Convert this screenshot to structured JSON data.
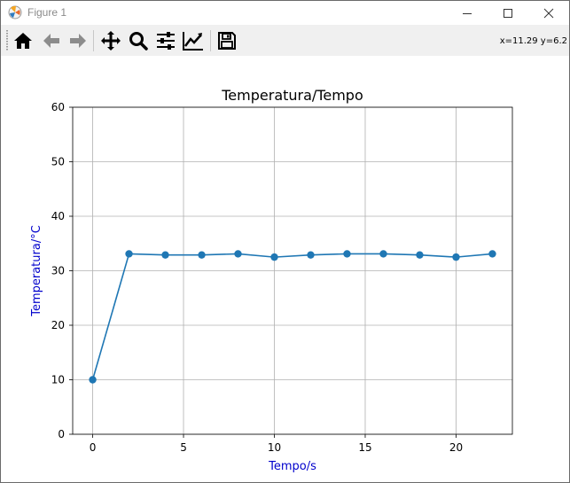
{
  "window": {
    "title": "Figure 1"
  },
  "toolbar": {
    "buttons": [
      {
        "name": "home-button",
        "icon": "home-icon"
      },
      {
        "name": "back-button",
        "icon": "arrow-left-icon"
      },
      {
        "name": "forward-button",
        "icon": "arrow-right-icon"
      },
      {
        "name": "pan-button",
        "icon": "move-icon"
      },
      {
        "name": "zoom-button",
        "icon": "magnifier-icon"
      },
      {
        "name": "configure-subplots-button",
        "icon": "sliders-icon"
      },
      {
        "name": "edit-axis-button",
        "icon": "line-chart-icon"
      },
      {
        "name": "save-button",
        "icon": "floppy-disk-icon"
      }
    ],
    "coordinates": "x=11.29 y=6.2"
  },
  "colors": {
    "series": "#1f77b4",
    "grid": "#b0b0b0",
    "axis_label": "#0000cc"
  },
  "chart_data": {
    "type": "line",
    "title": "Temperatura/Tempo",
    "xlabel": "Tempo/s",
    "ylabel": "Temperatura/°C",
    "x": [
      0,
      2,
      4,
      6,
      8,
      10,
      12,
      14,
      16,
      18,
      20,
      22
    ],
    "series": [
      {
        "values": [
          10,
          33.1,
          32.9,
          32.9,
          33.1,
          32.5,
          32.9,
          33.1,
          33.1,
          32.9,
          32.5,
          33.1
        ],
        "marker": "circle"
      }
    ],
    "xlim": [
      -1.1,
      23.1
    ],
    "ylim": [
      0,
      60
    ],
    "xticks": [
      "0",
      "5",
      "10",
      "15",
      "20"
    ],
    "yticks": [
      "0",
      "10",
      "20",
      "30",
      "40",
      "50",
      "60"
    ],
    "grid": true
  }
}
